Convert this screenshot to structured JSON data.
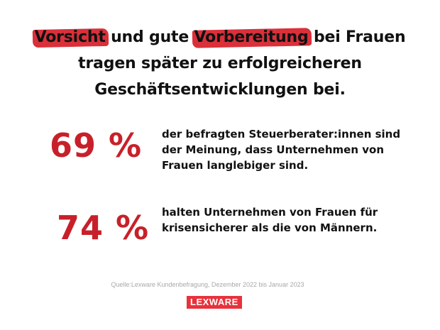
{
  "headline": {
    "highlight1": "Vorsicht",
    "part2": " und gute ",
    "highlight2": "Vorbereitung",
    "part4": " bei Frauen tragen später zu erfolgreicheren Geschäftsentwicklungen bei."
  },
  "stats": [
    {
      "value": "69 %",
      "text": "der befragten Steuerberater:innen sind der Meinung, dass Unternehmen von Frauen langlebiger sind."
    },
    {
      "value": "74 %",
      "text": "halten Unternehmen von Frauen für krisensicherer als die von Männern."
    }
  ],
  "source": "Quelle:Lexware Kundenbefragung, Dezember 2022 bis Januar 2023",
  "logo": {
    "text": "LEXWARE"
  },
  "colors": {
    "accent": "#c8202a",
    "highlight": "#d9303a",
    "logo_bg": "#e8323c",
    "source_text": "#a8a8a8"
  }
}
